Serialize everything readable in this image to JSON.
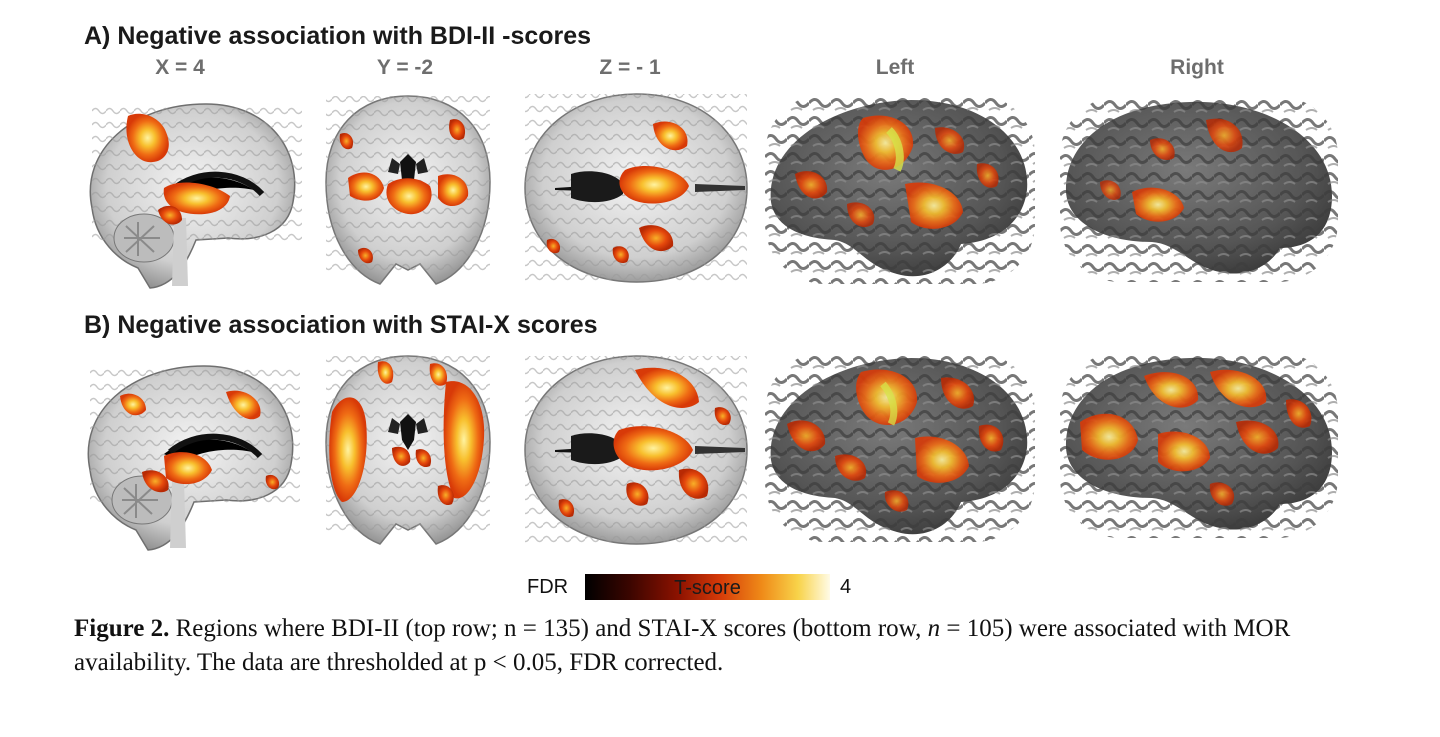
{
  "panel_a": {
    "title": "A) Negative association with BDI-II -scores"
  },
  "panel_b": {
    "title": "B) Negative association with STAI-X scores"
  },
  "columns": {
    "sagittal": "X = 4",
    "coronal": "Y = -2",
    "axial": "Z = - 1",
    "left": "Left",
    "right": "Right"
  },
  "colorbar": {
    "min_label": "FDR",
    "title": "T-score",
    "max_label": "4"
  },
  "caption": {
    "label": "Figure 2.",
    "text_1": " Regions where BDI-II (top row; n = 135) and STAI-X scores (bottom row, ",
    "n_italic": "n",
    "text_2": " = 105) were associated with MOR availability. The data are thresholded at p < 0.05, FDR corrected."
  }
}
